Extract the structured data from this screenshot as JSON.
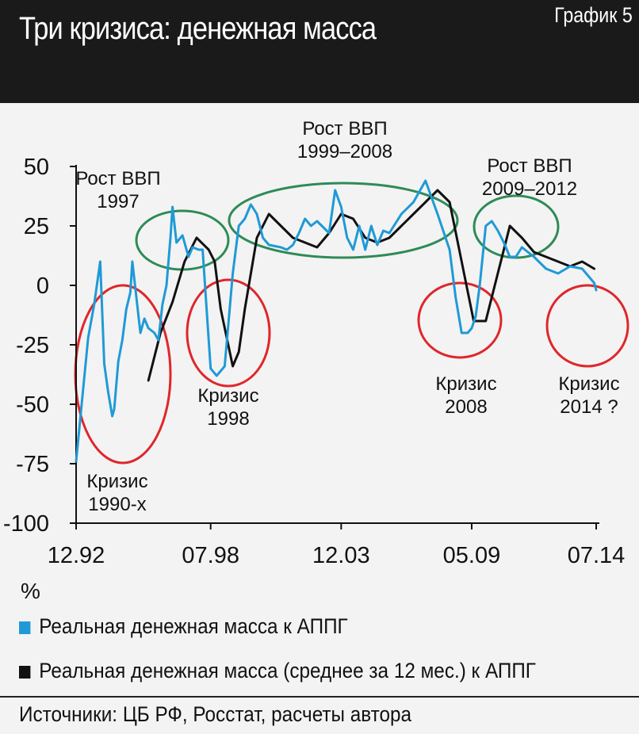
{
  "header": {
    "title": "Три кризиса: денежная масса",
    "badge": "График 5"
  },
  "chart_data": {
    "type": "line",
    "unit": "%",
    "x_ticks": [
      "12.92",
      "07.98",
      "12.03",
      "05.09",
      "07.14"
    ],
    "y_ticks": [
      "50",
      "25",
      "0",
      "-25",
      "-50",
      "-75",
      "-100"
    ],
    "ylim": [
      -100,
      50
    ],
    "grid": false,
    "legend_position": "bottom",
    "series": [
      {
        "name": "Реальная денежная масса к АППГ",
        "color": "#1f9ad6",
        "points": [
          [
            "12.92",
            -74
          ],
          [
            "06.93",
            -22
          ],
          [
            "09.93",
            -8
          ],
          [
            "12.93",
            10
          ],
          [
            "02.94",
            -33
          ],
          [
            "04.94",
            -45
          ],
          [
            "06.94",
            -55
          ],
          [
            "07.94",
            -52
          ],
          [
            "09.94",
            -32
          ],
          [
            "11.94",
            -23
          ],
          [
            "01.95",
            -10
          ],
          [
            "03.95",
            -3
          ],
          [
            "04.95",
            10
          ],
          [
            "06.95",
            -5
          ],
          [
            "08.95",
            -20
          ],
          [
            "10.95",
            -14
          ],
          [
            "12.95",
            -18
          ],
          [
            "03.96",
            -20
          ],
          [
            "05.96",
            -23
          ],
          [
            "07.96",
            -8
          ],
          [
            "09.96",
            0
          ],
          [
            "11.96",
            20
          ],
          [
            "12.96",
            33
          ],
          [
            "02.97",
            18
          ],
          [
            "05.97",
            21
          ],
          [
            "08.97",
            12
          ],
          [
            "10.97",
            16
          ],
          [
            "01.98",
            15
          ],
          [
            "03.98",
            15
          ],
          [
            "05.98",
            -10
          ],
          [
            "07.98",
            -35
          ],
          [
            "10.98",
            -38
          ],
          [
            "12.98",
            -36
          ],
          [
            "02.99",
            -34
          ],
          [
            "06.99",
            5
          ],
          [
            "09.99",
            25
          ],
          [
            "12.99",
            28
          ],
          [
            "03.00",
            34
          ],
          [
            "06.00",
            30
          ],
          [
            "09.00",
            20
          ],
          [
            "12.00",
            17
          ],
          [
            "06.01",
            16
          ],
          [
            "09.01",
            15
          ],
          [
            "12.01",
            17
          ],
          [
            "03.02",
            22
          ],
          [
            "06.02",
            28
          ],
          [
            "09.02",
            25
          ],
          [
            "12.02",
            27
          ],
          [
            "06.03",
            22
          ],
          [
            "09.03",
            40
          ],
          [
            "12.03",
            33
          ],
          [
            "03.04",
            20
          ],
          [
            "06.04",
            15
          ],
          [
            "09.04",
            25
          ],
          [
            "12.04",
            15
          ],
          [
            "03.05",
            25
          ],
          [
            "06.05",
            17
          ],
          [
            "09.05",
            23
          ],
          [
            "12.05",
            22
          ],
          [
            "06.06",
            30
          ],
          [
            "12.06",
            35
          ],
          [
            "06.07",
            44
          ],
          [
            "12.07",
            30
          ],
          [
            "06.08",
            15
          ],
          [
            "09.08",
            -5
          ],
          [
            "12.08",
            -20
          ],
          [
            "03.09",
            -20
          ],
          [
            "05.09",
            -18
          ],
          [
            "07.09",
            -13
          ],
          [
            "09.09",
            0
          ],
          [
            "12.09",
            25
          ],
          [
            "03.10",
            27
          ],
          [
            "06.10",
            23
          ],
          [
            "09.10",
            18
          ],
          [
            "12.10",
            12
          ],
          [
            "03.11",
            12
          ],
          [
            "06.11",
            16
          ],
          [
            "09.11",
            14
          ],
          [
            "12.11",
            12
          ],
          [
            "06.12",
            7
          ],
          [
            "12.12",
            5
          ],
          [
            "06.13",
            8
          ],
          [
            "12.13",
            7
          ],
          [
            "06.14",
            1
          ],
          [
            "07.14",
            -2
          ]
        ]
      },
      {
        "name": "Реальная денежная масса (среднее за 12 мес.) к АППГ",
        "color": "#111111",
        "points": [
          [
            "12.95",
            -40
          ],
          [
            "06.96",
            -20
          ],
          [
            "12.96",
            -7
          ],
          [
            "06.97",
            10
          ],
          [
            "12.97",
            20
          ],
          [
            "06.98",
            15
          ],
          [
            "09.98",
            10
          ],
          [
            "12.98",
            -10
          ],
          [
            "06.99",
            -34
          ],
          [
            "09.99",
            -28
          ],
          [
            "12.99",
            -10
          ],
          [
            "06.00",
            20
          ],
          [
            "12.00",
            30
          ],
          [
            "06.01",
            25
          ],
          [
            "12.01",
            20
          ],
          [
            "06.02",
            18
          ],
          [
            "12.02",
            16
          ],
          [
            "06.03",
            22
          ],
          [
            "12.03",
            30
          ],
          [
            "06.04",
            28
          ],
          [
            "12.04",
            20
          ],
          [
            "06.05",
            18
          ],
          [
            "12.05",
            20
          ],
          [
            "06.06",
            25
          ],
          [
            "12.06",
            30
          ],
          [
            "06.07",
            35
          ],
          [
            "12.07",
            40
          ],
          [
            "06.08",
            35
          ],
          [
            "12.08",
            10
          ],
          [
            "06.09",
            -15
          ],
          [
            "12.09",
            -15
          ],
          [
            "06.10",
            5
          ],
          [
            "12.10",
            25
          ],
          [
            "06.11",
            20
          ],
          [
            "12.11",
            14
          ],
          [
            "06.12",
            12
          ],
          [
            "12.12",
            10
          ],
          [
            "06.13",
            8
          ],
          [
            "12.13",
            10
          ],
          [
            "06.14",
            7
          ]
        ]
      }
    ],
    "annotations": [
      {
        "kind": "crisis",
        "lines": [
          "Кризис",
          "1990-х"
        ]
      },
      {
        "kind": "crisis",
        "lines": [
          "Кризис",
          "1998"
        ]
      },
      {
        "kind": "crisis",
        "lines": [
          "Кризис",
          "2008"
        ]
      },
      {
        "kind": "crisis",
        "lines": [
          "Кризис",
          "2014 ?"
        ]
      },
      {
        "kind": "growth",
        "lines": [
          "Рост ВВП",
          "1997"
        ]
      },
      {
        "kind": "growth",
        "lines": [
          "Рост ВВП",
          "1999–2008"
        ]
      },
      {
        "kind": "growth",
        "lines": [
          "Рост ВВП",
          "2009–2012"
        ]
      }
    ],
    "colors": {
      "crisis": "#e0262a",
      "growth": "#2e8b57",
      "axis": "#111111"
    }
  },
  "legend": [
    {
      "label": "Реальная денежная масса к АППГ",
      "color": "#1f9ad6"
    },
    {
      "label": "Реальная денежная масса (среднее за 12 мес.) к АППГ",
      "color": "#111111"
    }
  ],
  "footer": {
    "source": "Источники: ЦБ РФ, Росстат, расчеты автора"
  }
}
